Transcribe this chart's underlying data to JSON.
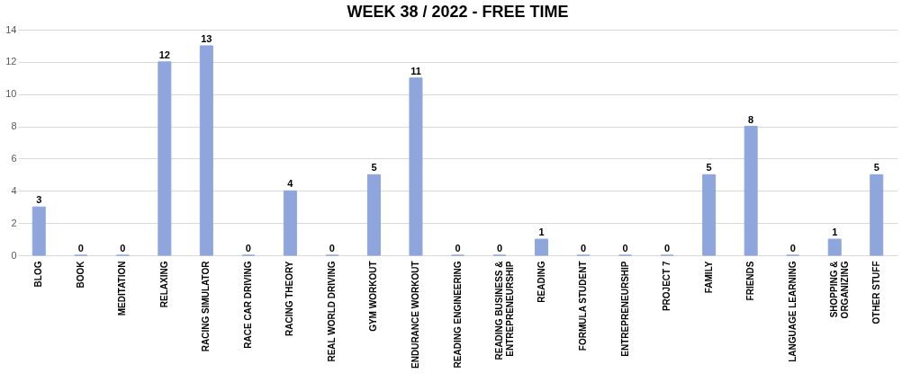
{
  "chart_data": {
    "type": "bar",
    "title": "WEEK 38 / 2022 - FREE TIME",
    "categories": [
      "BLOG",
      "BOOK",
      "MEDITATION",
      "RELAXING",
      "RACING SIMULATOR",
      "RACE CAR DRIVING",
      "RACING THEORY",
      "REAL WORLD DRIVING",
      "GYM WORKOUT",
      "ENDURANCE WORKOUT",
      "READING ENGINEERING",
      "READING BUSINESS & ENTREPRENEURSHIP",
      "READING",
      "FORMULA STUDENT",
      "ENTREPRENEURSHIP",
      "PROJECT 7",
      "FAMILY",
      "FRIENDS",
      "LANGUAGE LEARNING",
      "SHOPPING & ORGANIZING",
      "OTHER STUFF"
    ],
    "values": [
      3,
      0,
      0,
      12,
      13,
      0,
      4,
      0,
      5,
      11,
      0,
      0,
      1,
      0,
      0,
      0,
      5,
      8,
      0,
      1,
      5
    ],
    "color": "#8fa6dc",
    "ylim": [
      0,
      14
    ],
    "yticks": [
      0,
      2,
      4,
      6,
      8,
      10,
      12,
      14
    ],
    "grid": "y",
    "data_labels": true
  }
}
